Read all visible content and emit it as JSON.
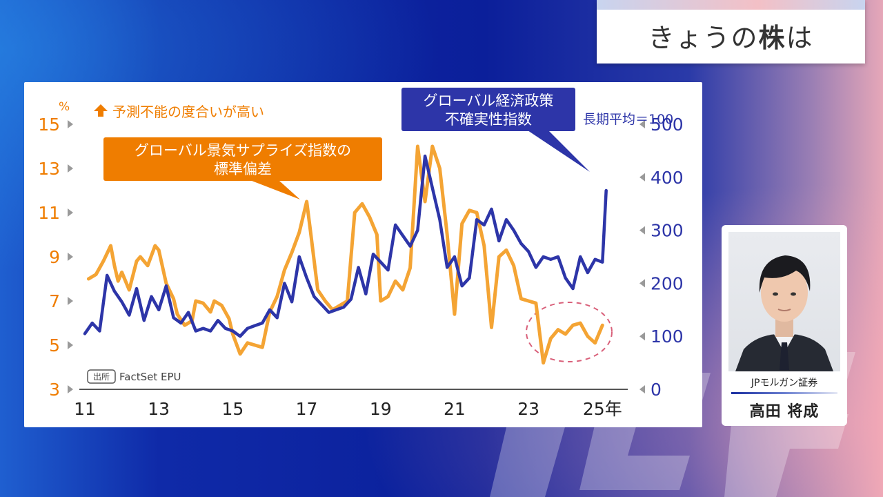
{
  "header": {
    "title_prefix": "きょうの",
    "title_emph": "株",
    "title_suffix": "は"
  },
  "guest": {
    "company": "JPモルガン証券",
    "name": "高田 将成"
  },
  "chart_data": {
    "type": "line",
    "left_axis": {
      "unit": "%",
      "ticks": [
        3,
        5,
        7,
        9,
        11,
        13,
        15
      ],
      "tick_labels": [
        "3",
        "5",
        "7",
        "9",
        "11",
        "13",
        "15"
      ],
      "ylim": [
        3,
        15
      ],
      "color": "#ef7d00"
    },
    "right_axis": {
      "ticks": [
        0,
        100,
        200,
        300,
        400,
        500
      ],
      "tick_labels": [
        "0",
        "100",
        "200",
        "300",
        "400",
        "500"
      ],
      "ylim": [
        0,
        500
      ],
      "note": "長期平均＝100",
      "color": "#2d35a8"
    },
    "x_axis": {
      "tick_labels": [
        "11",
        "13",
        "15",
        "17",
        "19",
        "21",
        "23",
        "25年"
      ],
      "xlim": [
        2011,
        2026.3
      ],
      "tick_positions": [
        2011,
        2013,
        2015,
        2017,
        2019,
        2021,
        2023,
        2025
      ]
    },
    "direction_note": "予測不能の度合いが高い",
    "source_badge": "出所",
    "source_text": "FactSet EPU",
    "series": [
      {
        "name": "グローバル景気サプライズ指数の標準偏差",
        "axis": "left",
        "color": "#f4a434",
        "x": [
          2011.1,
          2011.3,
          2011.5,
          2011.7,
          2011.8,
          2011.9,
          2012.0,
          2012.2,
          2012.4,
          2012.5,
          2012.7,
          2012.9,
          2013.0,
          2013.2,
          2013.4,
          2013.5,
          2013.7,
          2013.9,
          2014.0,
          2014.2,
          2014.4,
          2014.5,
          2014.7,
          2014.9,
          2015.0,
          2015.2,
          2015.4,
          2015.6,
          2015.8,
          2016.0,
          2016.2,
          2016.4,
          2016.6,
          2016.8,
          2017.0,
          2017.1,
          2017.3,
          2017.5,
          2017.7,
          2017.9,
          2018.1,
          2018.3,
          2018.5,
          2018.7,
          2018.9,
          2019.0,
          2019.2,
          2019.4,
          2019.6,
          2019.8,
          2020.0,
          2020.2,
          2020.4,
          2020.6,
          2020.8,
          2021.0,
          2021.2,
          2021.4,
          2021.6,
          2021.8,
          2022.0,
          2022.2,
          2022.4,
          2022.6,
          2022.8,
          2023.0,
          2023.2,
          2023.4,
          2023.6,
          2023.8,
          2024.0,
          2024.2,
          2024.4,
          2024.6,
          2024.8,
          2025.0
        ],
        "values": [
          8.0,
          8.2,
          8.8,
          9.5,
          8.6,
          7.9,
          8.3,
          7.5,
          8.8,
          9.0,
          8.6,
          9.5,
          9.3,
          7.8,
          7.1,
          6.4,
          5.9,
          6.1,
          7.0,
          6.9,
          6.5,
          7.0,
          6.8,
          6.2,
          5.5,
          4.6,
          5.1,
          5.0,
          4.9,
          6.5,
          7.2,
          8.4,
          9.2,
          10.1,
          11.5,
          10.2,
          7.5,
          7.0,
          6.6,
          6.8,
          7.0,
          11.0,
          11.4,
          10.8,
          10.0,
          7.0,
          7.2,
          7.9,
          7.5,
          8.5,
          14.0,
          11.5,
          14.0,
          13.0,
          10.0,
          6.4,
          10.5,
          11.1,
          11.0,
          9.5,
          5.8,
          9.0,
          9.3,
          8.6,
          7.1,
          7.0,
          6.9,
          4.2,
          5.3,
          5.7,
          5.5,
          5.9,
          6.0,
          5.4,
          5.1,
          5.9
        ]
      },
      {
        "name": "グローバル経済政策不確実性指数",
        "axis": "right",
        "color": "#2d35a8",
        "x": [
          2011.0,
          2011.2,
          2011.4,
          2011.6,
          2011.8,
          2012.0,
          2012.2,
          2012.4,
          2012.6,
          2012.8,
          2013.0,
          2013.2,
          2013.4,
          2013.6,
          2013.8,
          2014.0,
          2014.2,
          2014.4,
          2014.6,
          2014.8,
          2015.0,
          2015.2,
          2015.4,
          2015.6,
          2015.8,
          2016.0,
          2016.2,
          2016.4,
          2016.6,
          2016.8,
          2017.0,
          2017.2,
          2017.4,
          2017.6,
          2017.8,
          2018.0,
          2018.2,
          2018.4,
          2018.6,
          2018.8,
          2019.0,
          2019.2,
          2019.4,
          2019.6,
          2019.8,
          2020.0,
          2020.2,
          2020.4,
          2020.6,
          2020.8,
          2021.0,
          2021.2,
          2021.4,
          2021.6,
          2021.8,
          2022.0,
          2022.2,
          2022.4,
          2022.6,
          2022.8,
          2023.0,
          2023.2,
          2023.4,
          2023.6,
          2023.8,
          2024.0,
          2024.2,
          2024.4,
          2024.6,
          2024.8,
          2025.0,
          2025.1
        ],
        "values": [
          105,
          125,
          110,
          215,
          185,
          165,
          140,
          190,
          130,
          175,
          150,
          195,
          135,
          125,
          145,
          110,
          115,
          110,
          130,
          115,
          110,
          100,
          115,
          120,
          125,
          150,
          135,
          200,
          165,
          250,
          210,
          175,
          160,
          145,
          150,
          155,
          170,
          230,
          180,
          255,
          240,
          225,
          310,
          290,
          270,
          300,
          440,
          380,
          320,
          230,
          250,
          195,
          210,
          320,
          310,
          340,
          280,
          320,
          300,
          275,
          260,
          230,
          250,
          245,
          250,
          210,
          190,
          250,
          220,
          245,
          240,
          375
        ]
      }
    ],
    "annotations": [
      {
        "text_line1": "グローバル景気サプライズ指数の",
        "text_line2": "標準偏差"
      },
      {
        "text_line1": "グローバル経済政策",
        "text_line2": "不確実性指数"
      }
    ],
    "grid": false,
    "legend": "callouts"
  }
}
